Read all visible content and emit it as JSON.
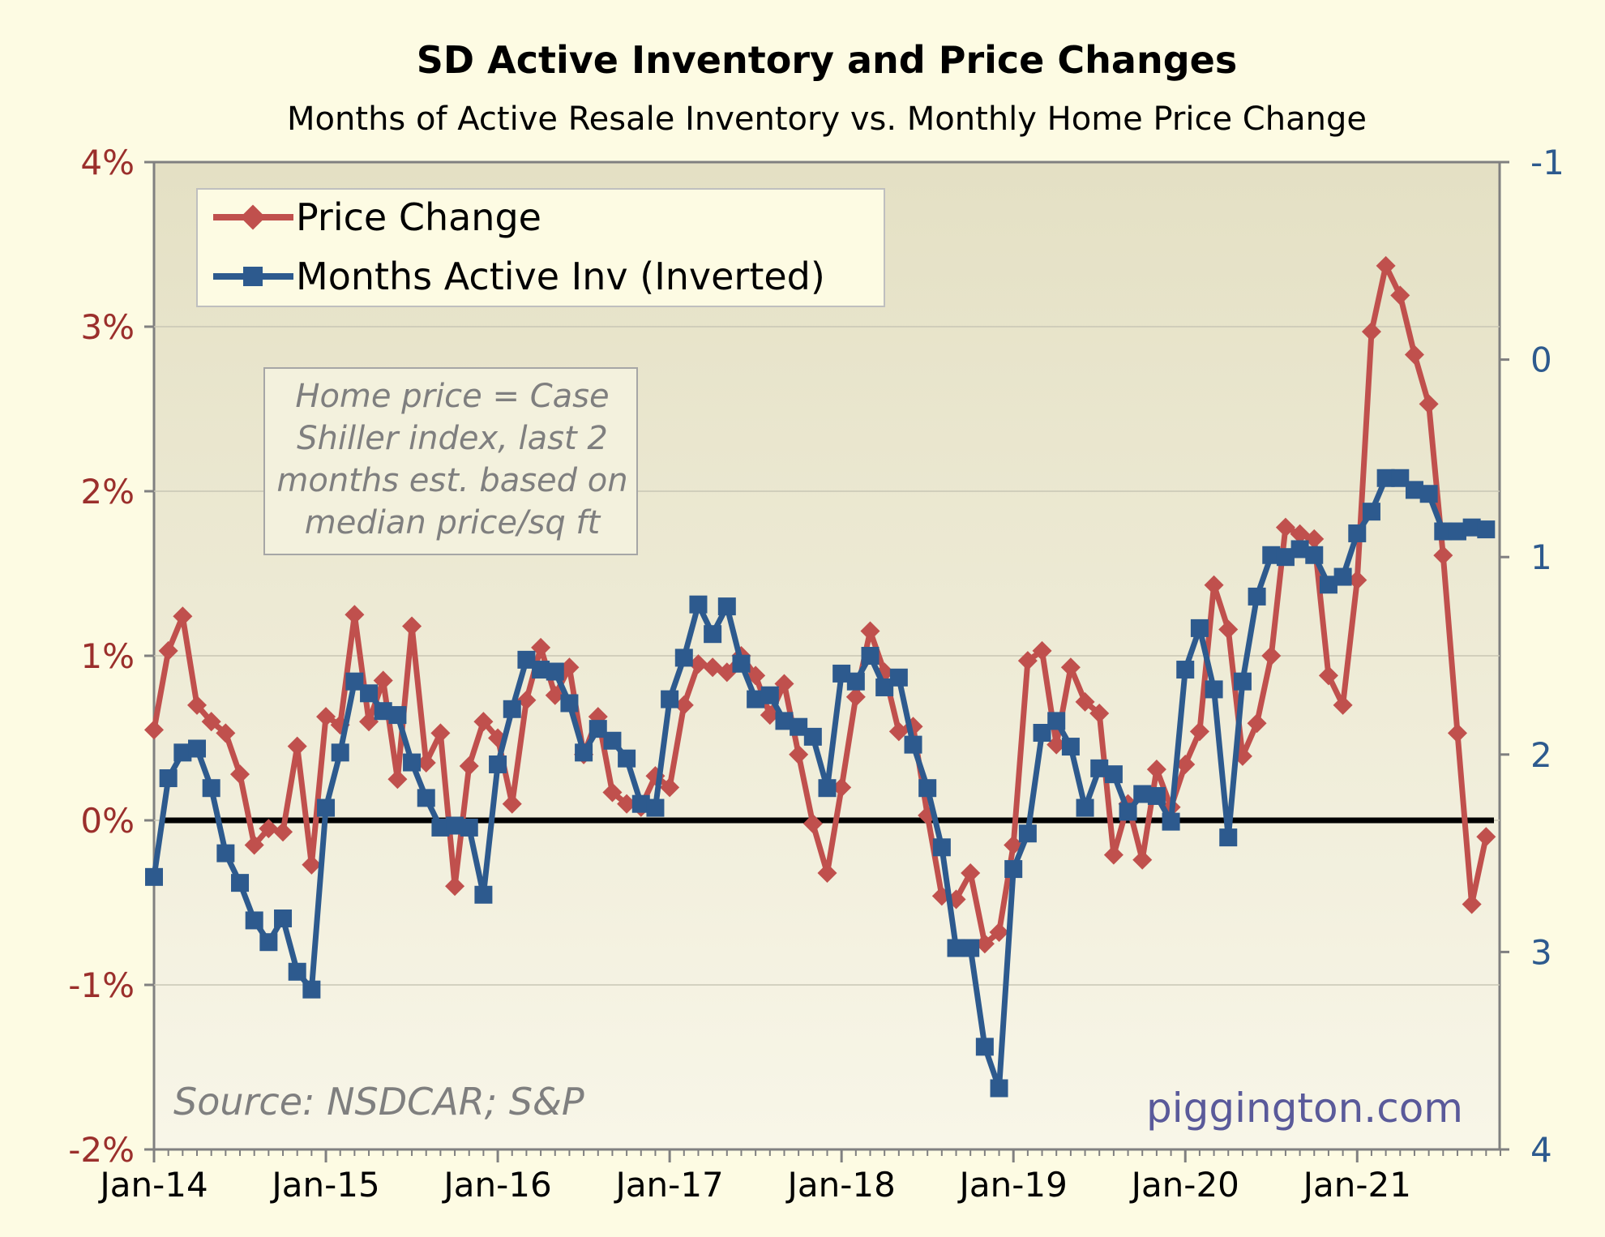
{
  "chart_data": {
    "type": "line",
    "title": "SD Active Inventory and Price Changes",
    "subtitle": "Months of Active Resale Inventory vs. Monthly Home Price Change",
    "x_tick_labels": [
      "Jan-14",
      "Jan-15",
      "Jan-16",
      "Jan-17",
      "Jan-18",
      "Jan-19",
      "Jan-20",
      "Jan-21"
    ],
    "x_start": "2014-01",
    "y_left": {
      "ticks": [
        "4%",
        "3%",
        "2%",
        "1%",
        "0%",
        "-1%",
        "-2%"
      ],
      "tick_values": [
        4,
        3,
        2,
        1,
        0,
        -1,
        -2
      ],
      "range": [
        -2,
        4
      ]
    },
    "y_right": {
      "ticks": [
        "-1",
        "0",
        "1",
        "2",
        "3",
        "4"
      ],
      "tick_values": [
        -1,
        0,
        1,
        2,
        3,
        4
      ],
      "range": [
        -1,
        4
      ],
      "inverted": true
    },
    "grid": true,
    "legend": "top-left",
    "series": [
      {
        "name": "Price Change",
        "axis": "left",
        "color": "#c0504d",
        "marker": "diamond",
        "values": [
          0.55,
          1.03,
          1.24,
          0.7,
          0.6,
          0.53,
          0.28,
          -0.15,
          -0.05,
          -0.07,
          0.45,
          -0.27,
          0.63,
          0.58,
          1.25,
          0.6,
          0.85,
          0.25,
          1.18,
          0.35,
          0.53,
          -0.4,
          0.33,
          0.6,
          0.5,
          0.1,
          0.73,
          1.05,
          0.76,
          0.93,
          0.4,
          0.63,
          0.17,
          0.1,
          0.08,
          0.27,
          0.2,
          0.7,
          0.95,
          0.93,
          0.9,
          1.0,
          0.88,
          0.64,
          0.83,
          0.4,
          -0.02,
          -0.32,
          0.2,
          0.75,
          1.15,
          0.9,
          0.54,
          0.57,
          0.03,
          -0.46,
          -0.48,
          -0.32,
          -0.75,
          -0.68,
          -0.15,
          0.97,
          1.03,
          0.46,
          0.93,
          0.72,
          0.65,
          -0.21,
          0.1,
          -0.24,
          0.31,
          0.08,
          0.34,
          0.54,
          1.43,
          1.16,
          0.39,
          0.59,
          1.0,
          1.78,
          1.74,
          1.71,
          0.88,
          0.7,
          1.46,
          2.97,
          3.37,
          3.19,
          2.83,
          2.53,
          1.61,
          0.53,
          -0.51,
          -0.1
        ]
      },
      {
        "name": "Months Active Inv (Inverted)",
        "axis": "right",
        "color": "#2d5a8e",
        "marker": "square",
        "values": [
          2.62,
          2.12,
          1.99,
          1.97,
          2.17,
          2.5,
          2.65,
          2.84,
          2.95,
          2.83,
          3.1,
          3.19,
          2.27,
          1.99,
          1.63,
          1.69,
          1.78,
          1.8,
          2.04,
          2.22,
          2.37,
          2.36,
          2.37,
          2.71,
          2.05,
          1.77,
          1.52,
          1.57,
          1.58,
          1.74,
          1.99,
          1.87,
          1.93,
          2.02,
          2.25,
          2.27,
          1.72,
          1.51,
          1.24,
          1.39,
          1.25,
          1.54,
          1.72,
          1.7,
          1.83,
          1.86,
          1.91,
          2.17,
          1.59,
          1.63,
          1.5,
          1.66,
          1.61,
          1.95,
          2.17,
          2.47,
          2.98,
          2.98,
          3.48,
          3.69,
          2.58,
          2.4,
          1.89,
          1.83,
          1.96,
          2.27,
          2.07,
          2.1,
          2.29,
          2.2,
          2.21,
          2.34,
          1.57,
          1.36,
          1.67,
          2.42,
          1.63,
          1.2,
          0.99,
          1.0,
          0.96,
          0.99,
          1.14,
          1.1,
          0.88,
          0.77,
          0.6,
          0.6,
          0.66,
          0.68,
          0.87,
          0.87,
          0.85,
          0.86
        ]
      }
    ],
    "zero_line": 0
  },
  "legend": {
    "price_label": "Price Change",
    "inv_label": "Months Active Inv (Inverted)"
  },
  "note": {
    "lines": [
      "Home price = Case",
      "Shiller index, last 2",
      "months est. based on",
      "median price/sq ft"
    ]
  },
  "source": "Source: NSDCAR; S&P",
  "brand": "piggington.com"
}
